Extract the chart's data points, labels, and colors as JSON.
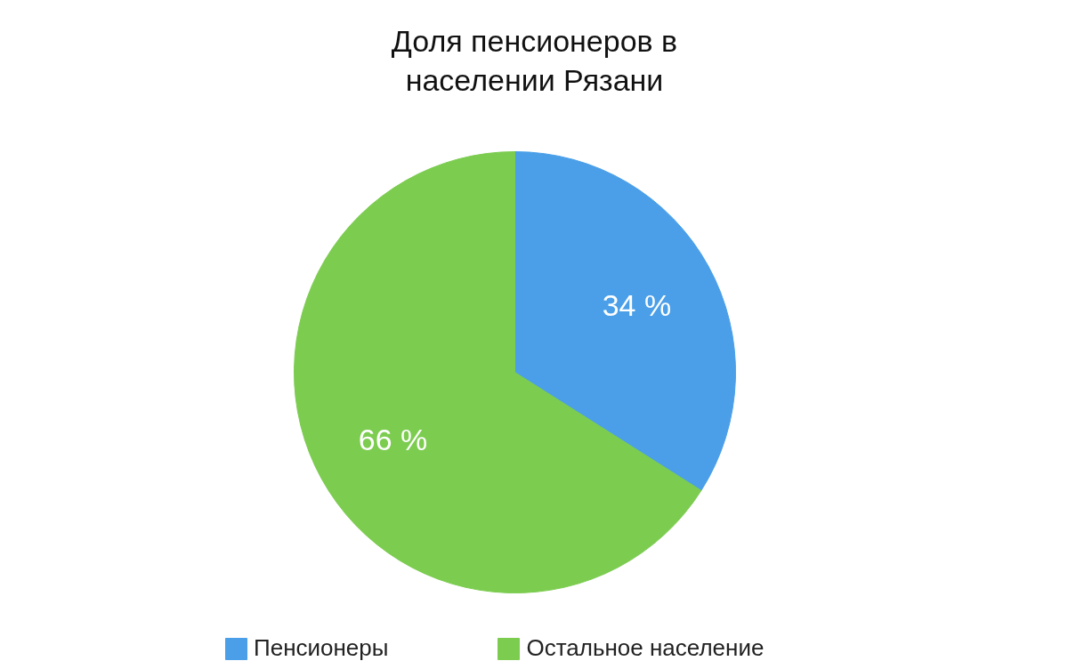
{
  "chart_data": {
    "type": "pie",
    "title": "Доля пенсионеров в населении Рязани",
    "categories": [
      "Пенсионеры",
      "Остальное население"
    ],
    "values": [
      34,
      66
    ],
    "colors": [
      "#4a9fe8",
      "#7ccc50"
    ],
    "value_labels": [
      "34 %",
      "66 %"
    ],
    "legend": "bottom"
  }
}
